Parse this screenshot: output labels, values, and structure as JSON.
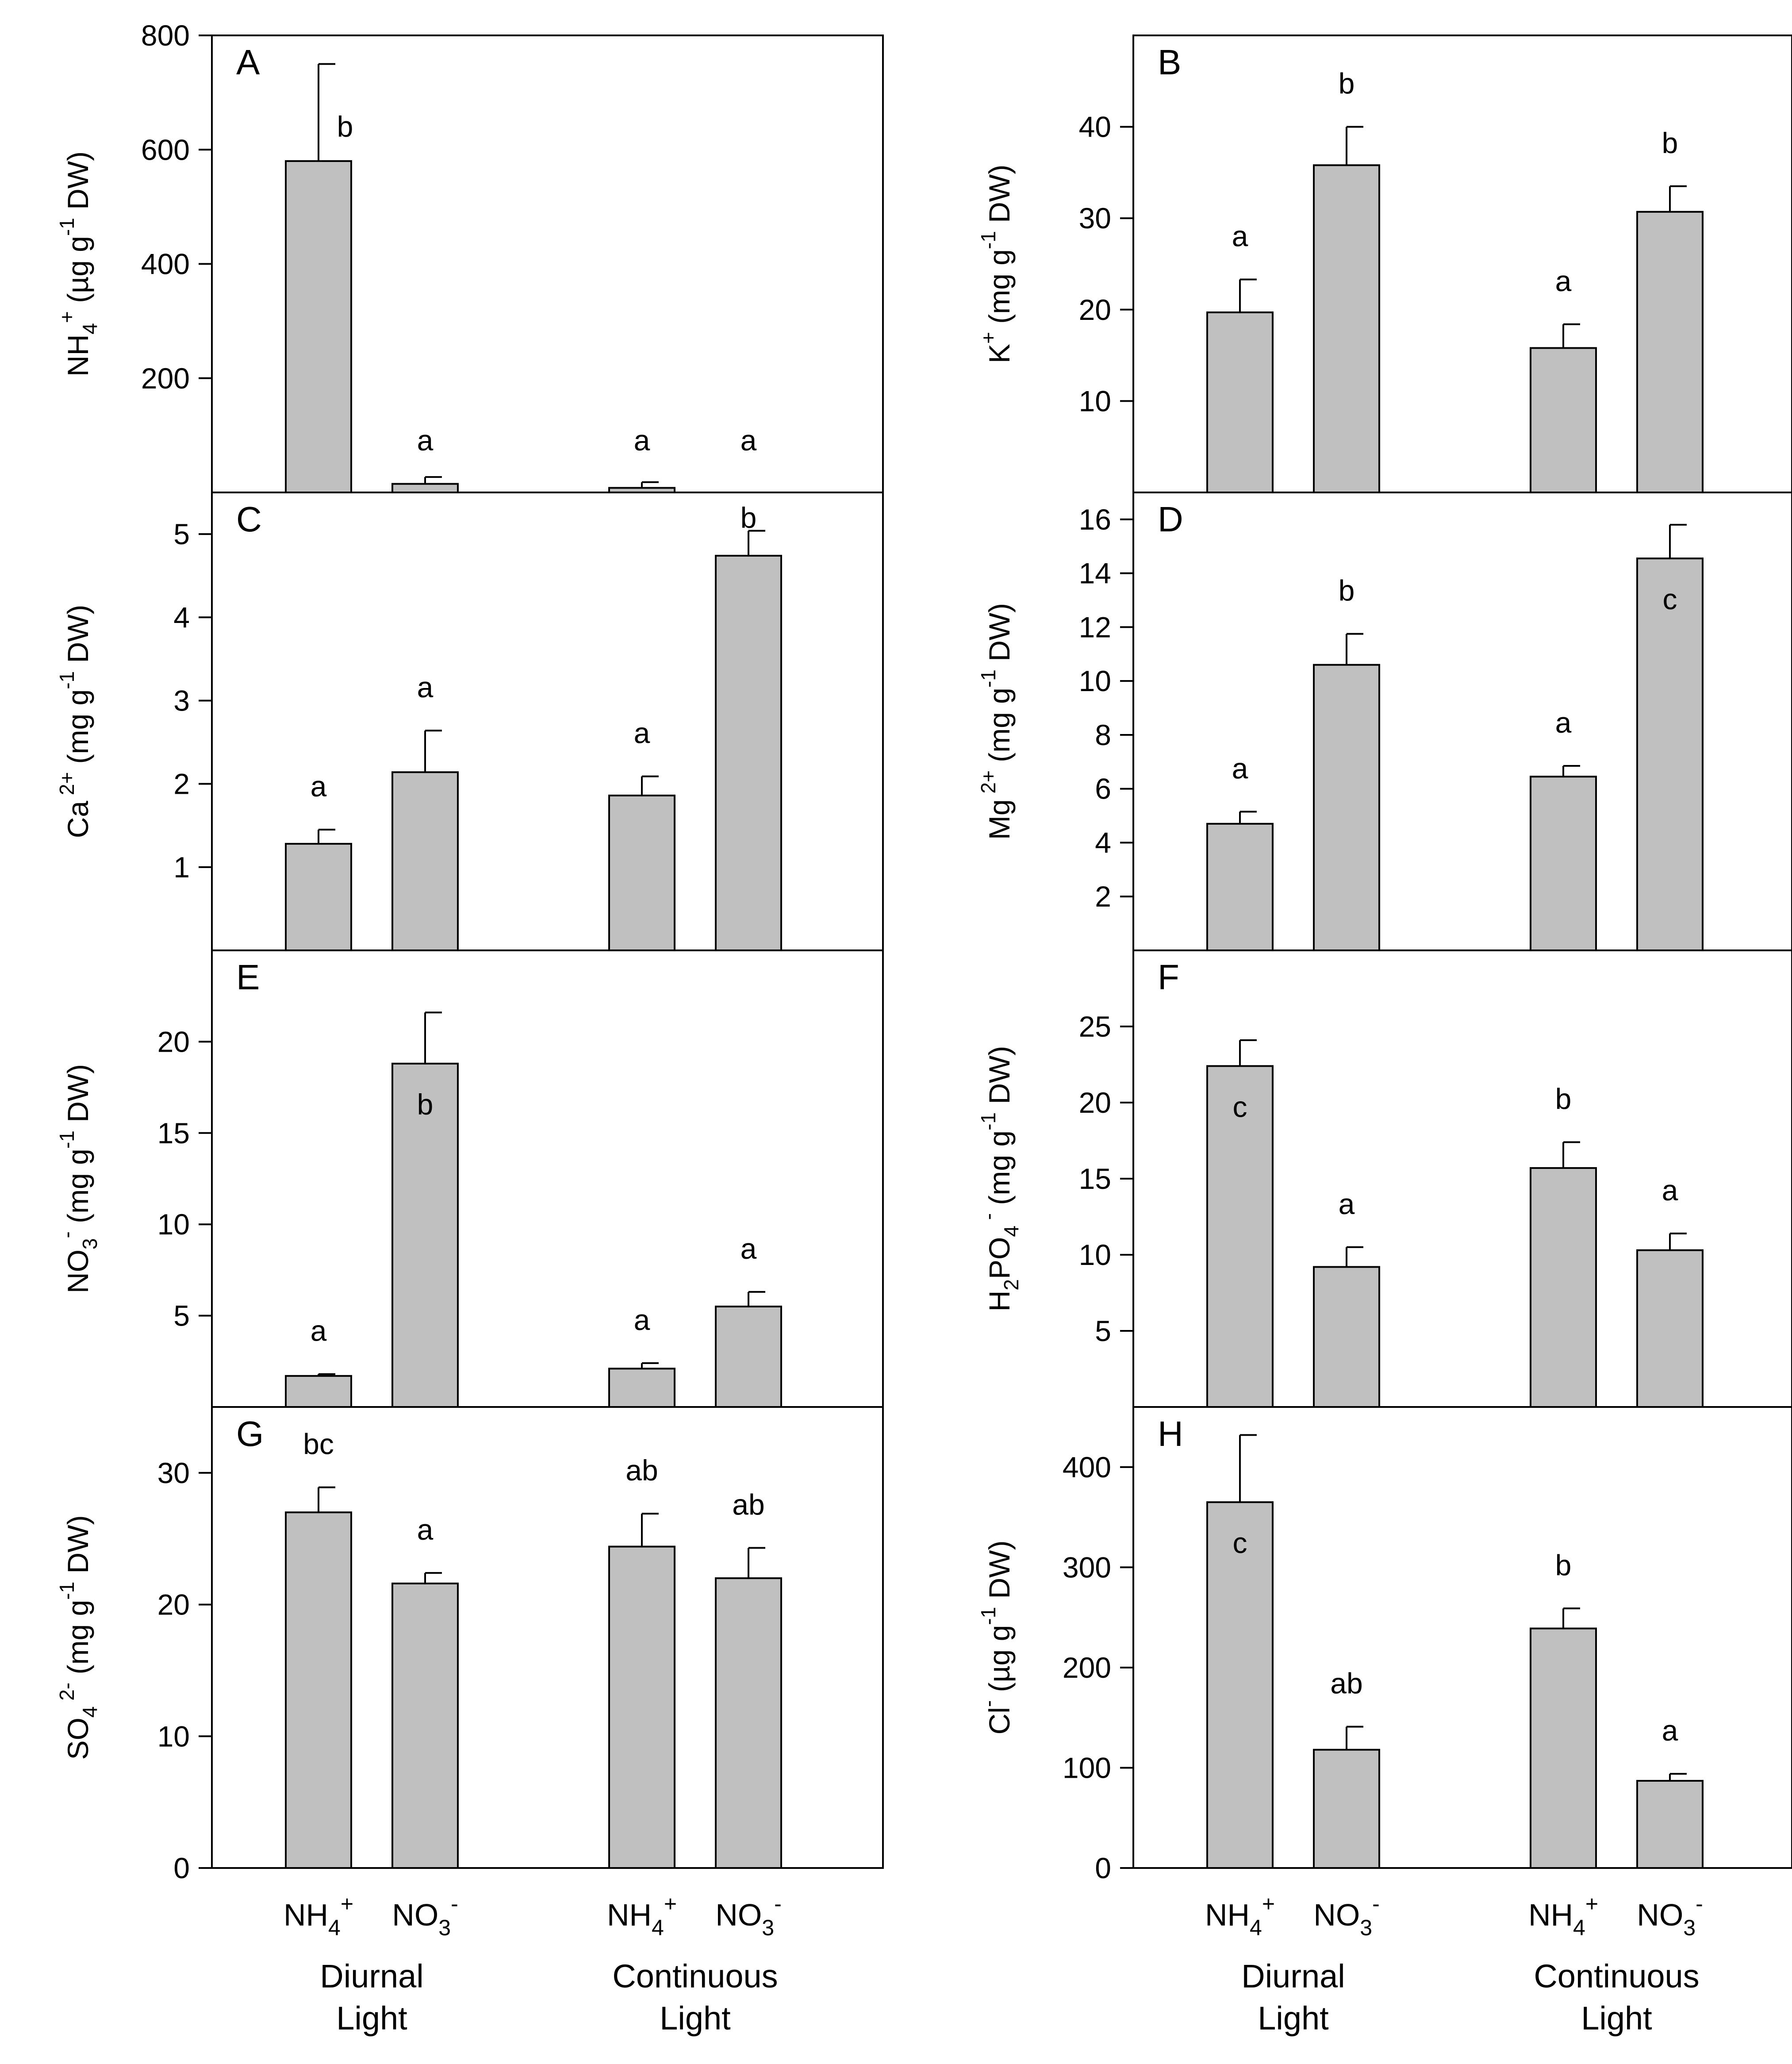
{
  "figure": {
    "group_labels": [
      {
        "line1": "Diurnal",
        "line2": "Light"
      },
      {
        "line1": "Continuous",
        "line2": "Light"
      }
    ],
    "category_labels": [
      {
        "base": "NH",
        "sub": "4",
        "sup": "+"
      },
      {
        "base": "NO",
        "sub": "3",
        "sup": "-"
      },
      {
        "base": "NH",
        "sub": "4",
        "sup": "+"
      },
      {
        "base": "NO",
        "sub": "3",
        "sup": "-"
      }
    ],
    "bar_color": "#c0c0c0"
  },
  "chart_data": [
    {
      "type": "bar",
      "panel": "A",
      "ylabel": {
        "ion": "NH",
        "ion_sub": "4",
        "ion_sup": "+",
        "unit": "(µg g",
        "unit_sup": "-1",
        "unit_end": " DW)"
      },
      "ylim": [
        0,
        800
      ],
      "yticks": [
        200,
        400,
        600,
        800
      ],
      "values": [
        580,
        15,
        8,
        0
      ],
      "errors": [
        170,
        12,
        10,
        0
      ],
      "letters": [
        "b",
        "a",
        "a",
        "a"
      ],
      "letter_inside": [
        false,
        false,
        false,
        false
      ]
    },
    {
      "type": "bar",
      "panel": "B",
      "ylabel": {
        "ion": "K",
        "ion_sub": "",
        "ion_sup": "+",
        "unit": "(mg g",
        "unit_sup": "-1",
        "unit_end": " DW)"
      },
      "ylim": [
        0,
        50
      ],
      "yticks": [
        10,
        20,
        30,
        40
      ],
      "values": [
        19.7,
        35.8,
        15.8,
        30.7
      ],
      "errors": [
        3.6,
        4.2,
        2.6,
        2.8
      ],
      "letters": [
        "a",
        "b",
        "a",
        "b"
      ],
      "letter_inside": [
        false,
        false,
        false,
        false
      ]
    },
    {
      "type": "bar",
      "panel": "C",
      "ylabel": {
        "ion": "Ca",
        "ion_sub": "",
        "ion_sup": " 2+",
        "unit": "(mg g",
        "unit_sup": "-1",
        "unit_end": " DW)"
      },
      "ylim": [
        0,
        5.5
      ],
      "yticks": [
        1,
        2,
        3,
        4,
        5
      ],
      "values": [
        1.28,
        2.14,
        1.86,
        4.74
      ],
      "errors": [
        0.17,
        0.5,
        0.23,
        0.3
      ],
      "letters": [
        "a",
        "a",
        "a",
        "b"
      ],
      "letter_inside": [
        false,
        false,
        false,
        false
      ]
    },
    {
      "type": "bar",
      "panel": "D",
      "ylabel": {
        "ion": "Mg",
        "ion_sub": "",
        "ion_sup": " 2+",
        "unit": "(mg g",
        "unit_sup": "-1",
        "unit_end": " DW)"
      },
      "ylim": [
        0,
        17
      ],
      "yticks": [
        2,
        4,
        6,
        8,
        10,
        12,
        14,
        16
      ],
      "values": [
        4.7,
        10.6,
        6.45,
        14.55
      ],
      "errors": [
        0.45,
        1.15,
        0.4,
        1.25
      ],
      "letters": [
        "a",
        "b",
        "a",
        "c"
      ],
      "letter_inside": [
        false,
        false,
        false,
        true
      ]
    },
    {
      "type": "bar",
      "panel": "E",
      "ylabel": {
        "ion": "NO",
        "ion_sub": "3",
        "ion_sup": "-",
        "unit": "(mg g",
        "unit_sup": "-1",
        "unit_end": " DW)"
      },
      "ylim": [
        0,
        25
      ],
      "yticks": [
        5,
        10,
        15,
        20
      ],
      "values": [
        1.7,
        18.8,
        2.1,
        5.5
      ],
      "errors": [
        0.1,
        2.8,
        0.3,
        0.8
      ],
      "letters": [
        "a",
        "b",
        "a",
        "a"
      ],
      "letter_inside": [
        false,
        true,
        false,
        false
      ]
    },
    {
      "type": "bar",
      "panel": "F",
      "ylabel": {
        "ion": "H",
        "ion_sub": "2",
        "ion_mid": "PO",
        "ion_sub2": "4",
        "ion_sup": " -",
        "unit": " (mg g",
        "unit_sup": "-1",
        "unit_end": " DW)"
      },
      "ylim": [
        0,
        30
      ],
      "yticks": [
        5,
        10,
        15,
        20,
        25
      ],
      "values": [
        22.4,
        9.2,
        15.7,
        10.3
      ],
      "errors": [
        1.7,
        1.3,
        1.7,
        1.1
      ],
      "letters": [
        "c",
        "a",
        "b",
        "a"
      ],
      "letter_inside": [
        true,
        false,
        false,
        false
      ]
    },
    {
      "type": "bar",
      "panel": "G",
      "ylabel": {
        "ion": "SO",
        "ion_sub": "4",
        "ion_sup": " 2-",
        "unit": "(mg g",
        "unit_sup": "-1",
        "unit_end": " DW)"
      },
      "ylim": [
        0,
        35
      ],
      "yticks": [
        0,
        10,
        20,
        30
      ],
      "values": [
        27.0,
        21.6,
        24.4,
        22.0
      ],
      "errors": [
        1.9,
        0.8,
        2.5,
        2.3
      ],
      "letters": [
        "bc",
        "a",
        "ab",
        "ab"
      ],
      "letter_inside": [
        false,
        false,
        false,
        false
      ]
    },
    {
      "type": "bar",
      "panel": "H",
      "ylabel": {
        "ion": "Cl",
        "ion_sub": "",
        "ion_sup": "-",
        "unit": "(µg g",
        "unit_sup": "-1",
        "unit_end": " DW)"
      },
      "ylim": [
        0,
        460
      ],
      "yticks": [
        0,
        100,
        200,
        300,
        400
      ],
      "values": [
        365,
        118,
        239,
        87
      ],
      "errors": [
        67,
        23,
        20,
        7
      ],
      "letters": [
        "c",
        "ab",
        "b",
        "a"
      ],
      "letter_inside": [
        true,
        false,
        false,
        false
      ]
    }
  ]
}
